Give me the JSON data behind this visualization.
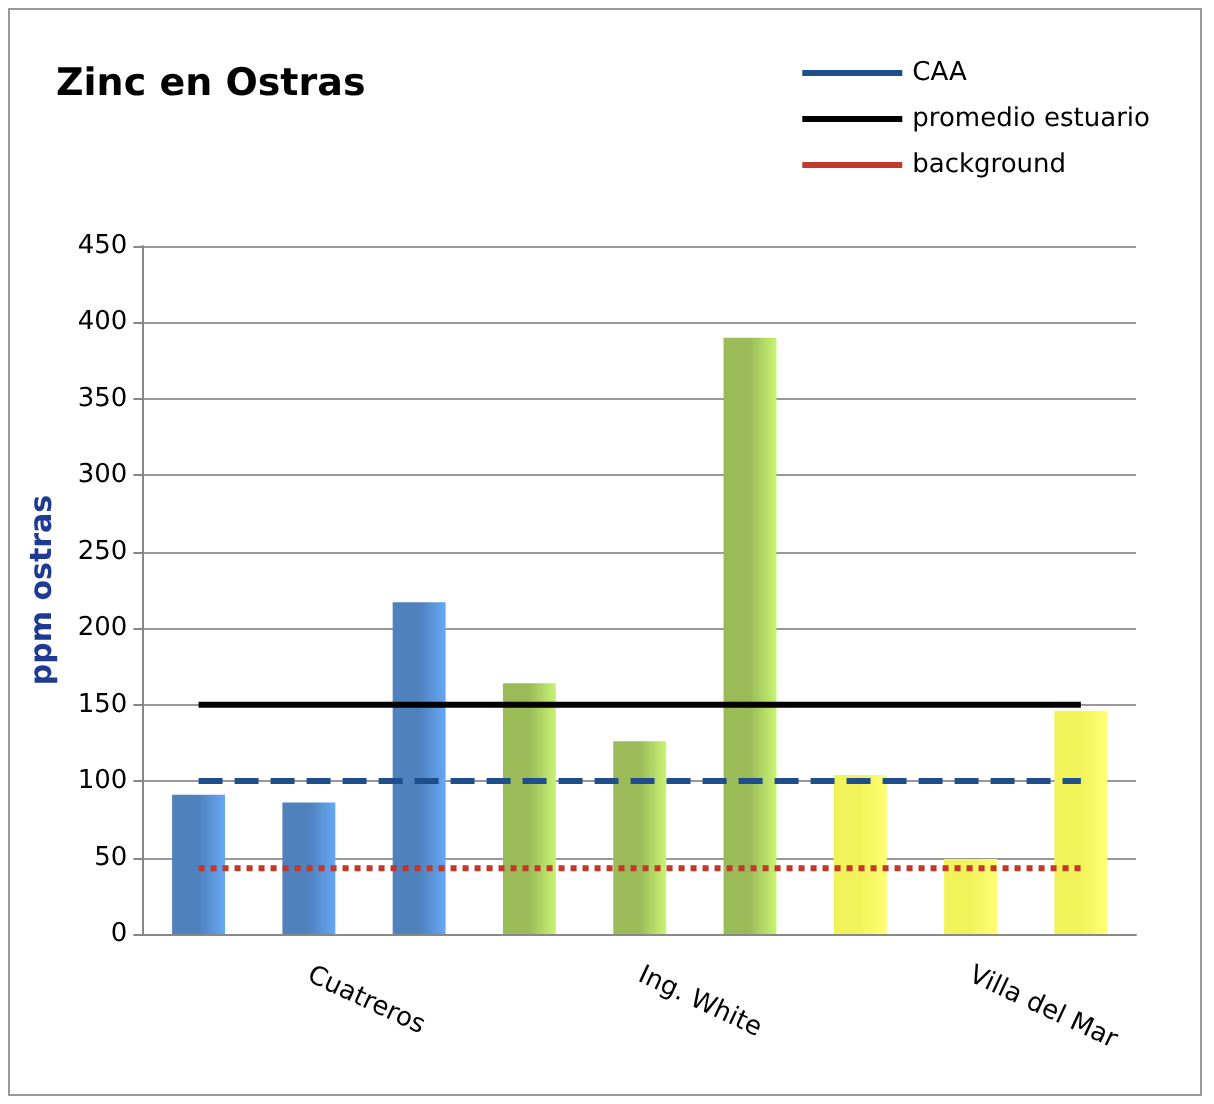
{
  "chart_data": {
    "type": "bar",
    "title": "Zinc en Ostras",
    "ylabel": "ppm ostras",
    "categories": [
      null,
      "Cuatreros",
      null,
      null,
      "Ing. White",
      null,
      null,
      "Villa del Mar",
      null
    ],
    "values": [
      91,
      86,
      217,
      164,
      126,
      390,
      104,
      49,
      146
    ],
    "colors": [
      "#4f81bd",
      "#4f81bd",
      "#4f81bd",
      "#9bbb59",
      "#9bbb59",
      "#9bbb59",
      "#f2f25a",
      "#f2f25a",
      "#f2f25a"
    ],
    "ylim": [
      0,
      450
    ],
    "yticks": [
      0,
      50,
      100,
      150,
      200,
      250,
      300,
      350,
      400,
      450
    ],
    "grid": "y",
    "legend": "top right",
    "ref_lines": [
      {
        "axis": "y",
        "value": 100,
        "label": "CAA",
        "color": "#1f4e8c",
        "line_style": "dashed"
      },
      {
        "axis": "y",
        "value": 150,
        "label": "promedio estuario",
        "color": "#000000",
        "line_style": "solid"
      },
      {
        "axis": "y",
        "value": 43,
        "label": "background",
        "color": "#c0392b",
        "line_style": "dotted"
      }
    ]
  }
}
